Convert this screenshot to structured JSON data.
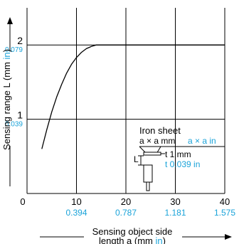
{
  "chart_data": {
    "type": "line",
    "xlim": [
      0,
      40
    ],
    "ylim": [
      0,
      2.5
    ],
    "x_ticks": [
      {
        "value": 0,
        "label": "0",
        "inch": ""
      },
      {
        "value": 10,
        "label": "10",
        "inch": "0.394"
      },
      {
        "value": 20,
        "label": "20",
        "inch": "0.787"
      },
      {
        "value": 30,
        "label": "30",
        "inch": "1.181"
      },
      {
        "value": 40,
        "label": "40",
        "inch": "1.575"
      }
    ],
    "y_ticks": [
      {
        "value": 1,
        "label": "1",
        "inch": "0.039"
      },
      {
        "value": 2,
        "label": "2",
        "inch": "0.079"
      }
    ],
    "grid": true,
    "xlabel": {
      "line1": "Sensing object side",
      "line2_prefix": "length a (mm ",
      "line2_unit": "in",
      "line2_suffix": ")"
    },
    "ylabel": {
      "prefix": "Sensing range L (mm ",
      "unit": "in",
      "suffix": ")"
    },
    "series": [
      {
        "x": [
          3,
          4,
          5,
          6,
          7,
          8,
          9,
          10,
          11,
          12,
          13,
          14,
          15,
          20,
          25,
          30,
          35,
          40
        ],
        "y": [
          0.6,
          0.86,
          1.1,
          1.3,
          1.47,
          1.62,
          1.74,
          1.83,
          1.9,
          1.95,
          1.98,
          2.0,
          2.0,
          2.0,
          2.0,
          2.0,
          2.0,
          2.0
        ]
      }
    ],
    "annotation": {
      "title": "Iron sheet",
      "size_mm": "a × a mm",
      "size_in": "a × a in",
      "thickness_mm": "t 1 mm",
      "thickness_in": "t 0.039 in",
      "L_label": "L"
    },
    "colors": {
      "axis": "#000000",
      "grid": "#000000",
      "curve": "#000000",
      "inch": "#1aa3d9"
    }
  }
}
